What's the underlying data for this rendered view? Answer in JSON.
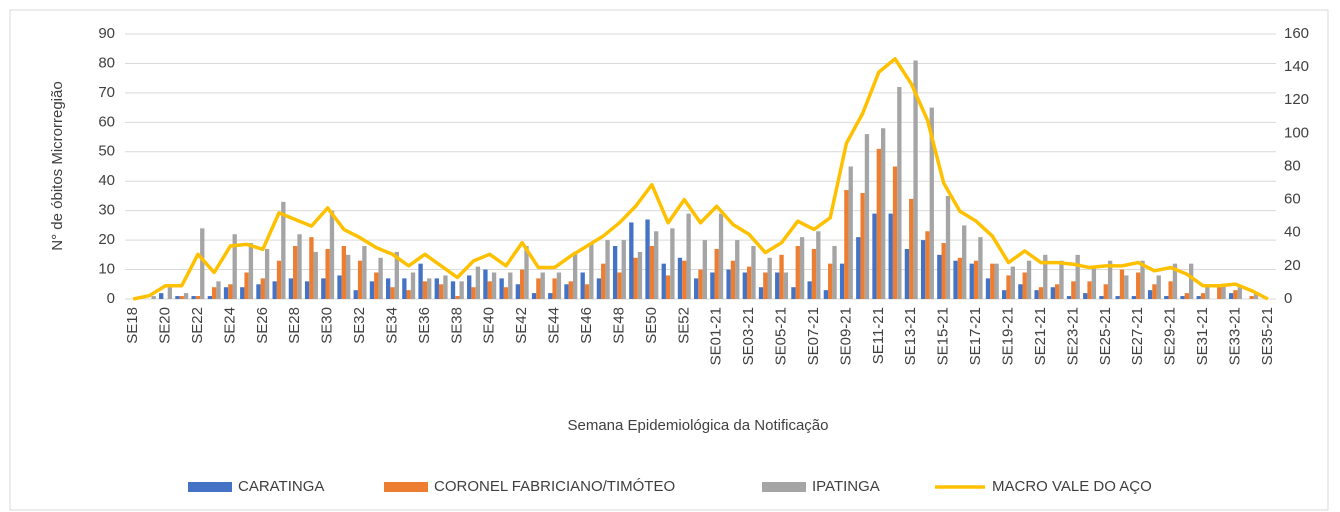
{
  "chart_data": {
    "type": "bar",
    "x_label": "Semana Epidemiológica  da Notificação",
    "y_label": "N° de óbitos Microrregião",
    "categories": [
      "SE18",
      null,
      "SE20",
      null,
      "SE22",
      null,
      "SE24",
      null,
      "SE26",
      null,
      "SE28",
      null,
      "SE30",
      null,
      "SE32",
      null,
      "SE34",
      null,
      "SE36",
      null,
      "SE38",
      null,
      "SE40",
      null,
      "SE42",
      null,
      "SE44",
      null,
      "SE46",
      null,
      "SE48",
      null,
      "SE50",
      null,
      "SE52",
      null,
      "SE01-21",
      null,
      "SE03-21",
      null,
      "SE05-21",
      null,
      "SE07-21",
      null,
      "SE09-21",
      null,
      "SE11-21",
      null,
      "SE13-21",
      null,
      "SE15-21",
      null,
      "SE17-21",
      null,
      "SE19-21",
      null,
      "SE21-21",
      null,
      "SE23-21",
      null,
      "SE25-21",
      null,
      "SE27-21",
      null,
      "SE29-21",
      null,
      "SE31-21",
      null,
      "SE33-21",
      null,
      "SE35-21"
    ],
    "ylim": [
      0,
      90
    ],
    "yticks": [
      0,
      10,
      20,
      30,
      40,
      50,
      60,
      70,
      80,
      90
    ],
    "y2lim": [
      0,
      160
    ],
    "y2ticks": [
      0,
      20,
      40,
      60,
      80,
      100,
      120,
      140,
      160
    ],
    "grid": true,
    "legend": "bottom",
    "series": [
      {
        "name": "CARATINGA",
        "color": "#4472c4",
        "values": [
          0,
          0,
          2,
          1,
          1,
          1,
          4,
          4,
          5,
          6,
          7,
          6,
          7,
          8,
          3,
          6,
          7,
          7,
          12,
          7,
          6,
          8,
          10,
          7,
          5,
          2,
          2,
          5,
          9,
          7,
          18,
          26,
          27,
          12,
          14,
          7,
          9,
          10,
          9,
          4,
          9,
          4,
          6,
          3,
          12,
          21,
          29,
          29,
          17,
          20,
          15,
          13,
          12,
          7,
          3,
          5,
          3,
          4,
          1,
          2,
          1,
          1,
          1,
          3,
          1,
          1,
          1,
          0,
          2,
          0,
          0
        ]
      },
      {
        "name": "CORONEL FABRICIANO/TIMÓTEO",
        "color": "#ed7d31",
        "values": [
          0,
          0,
          0,
          1,
          1,
          4,
          5,
          9,
          7,
          13,
          18,
          21,
          17,
          18,
          13,
          9,
          4,
          3,
          6,
          5,
          1,
          4,
          6,
          4,
          10,
          7,
          7,
          6,
          5,
          12,
          9,
          14,
          18,
          8,
          13,
          10,
          17,
          13,
          11,
          9,
          15,
          18,
          17,
          12,
          37,
          36,
          51,
          45,
          34,
          23,
          19,
          14,
          13,
          12,
          8,
          9,
          4,
          5,
          6,
          6,
          5,
          10,
          9,
          5,
          6,
          2,
          2,
          4,
          3,
          1,
          0
        ]
      },
      {
        "name": "IPATINGA",
        "color": "#a5a5a5",
        "values": [
          0,
          1,
          4,
          2,
          24,
          6,
          22,
          19,
          17,
          33,
          22,
          16,
          30,
          15,
          18,
          14,
          16,
          9,
          7,
          8,
          6,
          11,
          9,
          9,
          18,
          9,
          9,
          16,
          19,
          20,
          20,
          16,
          23,
          24,
          29,
          20,
          29,
          20,
          18,
          14,
          9,
          21,
          23,
          18,
          45,
          56,
          58,
          72,
          81,
          65,
          35,
          25,
          21,
          12,
          11,
          13,
          15,
          13,
          15,
          11,
          13,
          8,
          13,
          8,
          12,
          12,
          4,
          5,
          4,
          2,
          0
        ]
      },
      {
        "name": "MACRO VALE DO AÇO",
        "color": "#ffc000",
        "type": "line",
        "axis": "y2",
        "values": [
          0,
          2,
          8,
          8,
          27,
          16,
          32,
          33,
          30,
          52,
          48,
          44,
          55,
          42,
          37,
          31,
          27,
          20,
          27,
          20,
          13,
          23,
          27,
          20,
          34,
          19,
          19,
          26,
          32,
          38,
          46,
          56,
          69,
          46,
          60,
          46,
          56,
          45,
          39,
          28,
          34,
          47,
          42,
          49,
          94,
          112,
          137,
          145,
          130,
          108,
          70,
          53,
          47,
          38,
          22,
          29,
          22,
          22,
          21,
          19,
          20,
          20,
          22,
          17,
          19,
          15,
          8,
          8,
          9,
          5,
          0
        ]
      }
    ]
  }
}
